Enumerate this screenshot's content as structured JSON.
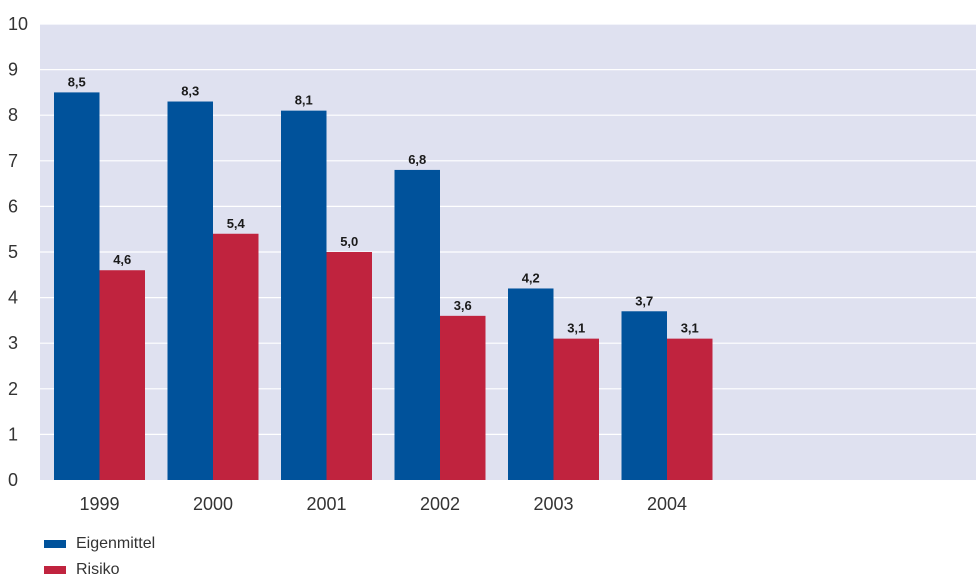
{
  "chart_data": {
    "type": "bar",
    "title": "",
    "xlabel": "",
    "ylabel": "",
    "categories": [
      "1999",
      "2000",
      "2001",
      "2002",
      "2003",
      "2004"
    ],
    "series": [
      {
        "name": "Eigenmittel",
        "color": "#00529b",
        "values": [
          8.5,
          8.3,
          8.1,
          6.8,
          4.2,
          3.7
        ],
        "labels": [
          "8,5",
          "8,3",
          "8,1",
          "6,8",
          "4,2",
          "3,7"
        ]
      },
      {
        "name": "Risiko",
        "color": "#c0233e",
        "values": [
          4.6,
          5.4,
          5.0,
          3.6,
          3.1,
          3.1
        ],
        "labels": [
          "4,6",
          "5,4",
          "5,0",
          "3,6",
          "3,1",
          "3,1"
        ]
      }
    ],
    "ylim": [
      0,
      10
    ],
    "yticks": [
      "0",
      "1",
      "2",
      "3",
      "4",
      "5",
      "6",
      "7",
      "8",
      "9",
      "10"
    ],
    "grid": true,
    "background": "#dfe1f0",
    "legend_position": "bottom-left"
  }
}
